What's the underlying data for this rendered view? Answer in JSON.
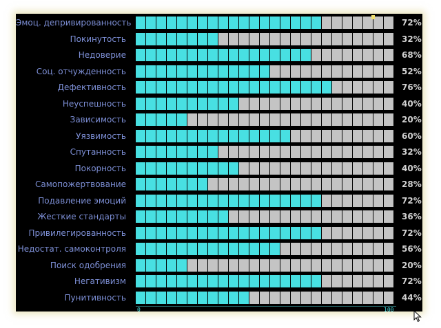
{
  "chart_data": {
    "type": "bar",
    "orientation": "horizontal",
    "xlim": [
      0,
      100
    ],
    "tick_labels": [
      "0",
      "100"
    ],
    "categories": [
      "Эмоц. депривированность",
      "Покинутость",
      "Недоверие",
      "Соц. отчужденность",
      "Дефективность",
      "Неуспешность",
      "Зависимость",
      "Уязвимость",
      "Спутанность",
      "Покорность",
      "Самопожертвование",
      "Подавление эмоций",
      "Жесткие стандарты",
      "Привилегированность",
      "Недостат. самоконтроля",
      "Поиск одобрения",
      "Негативизм",
      "Пунитивность"
    ],
    "values": [
      72,
      32,
      68,
      52,
      76,
      40,
      20,
      60,
      32,
      40,
      28,
      72,
      36,
      72,
      56,
      20,
      72,
      44
    ],
    "value_labels": [
      "72%",
      "32%",
      "68%",
      "52%",
      "76%",
      "40%",
      "20%",
      "60%",
      "32%",
      "40%",
      "28%",
      "72%",
      "36%",
      "72%",
      "56%",
      "20%",
      "72%",
      "44%"
    ],
    "segments_per_bar": 25,
    "colors": {
      "filled": "#48e0e2",
      "empty": "#c4c4c4",
      "label": "#7d8fd6",
      "value": "#d0d0d0",
      "background": "#000000"
    }
  }
}
